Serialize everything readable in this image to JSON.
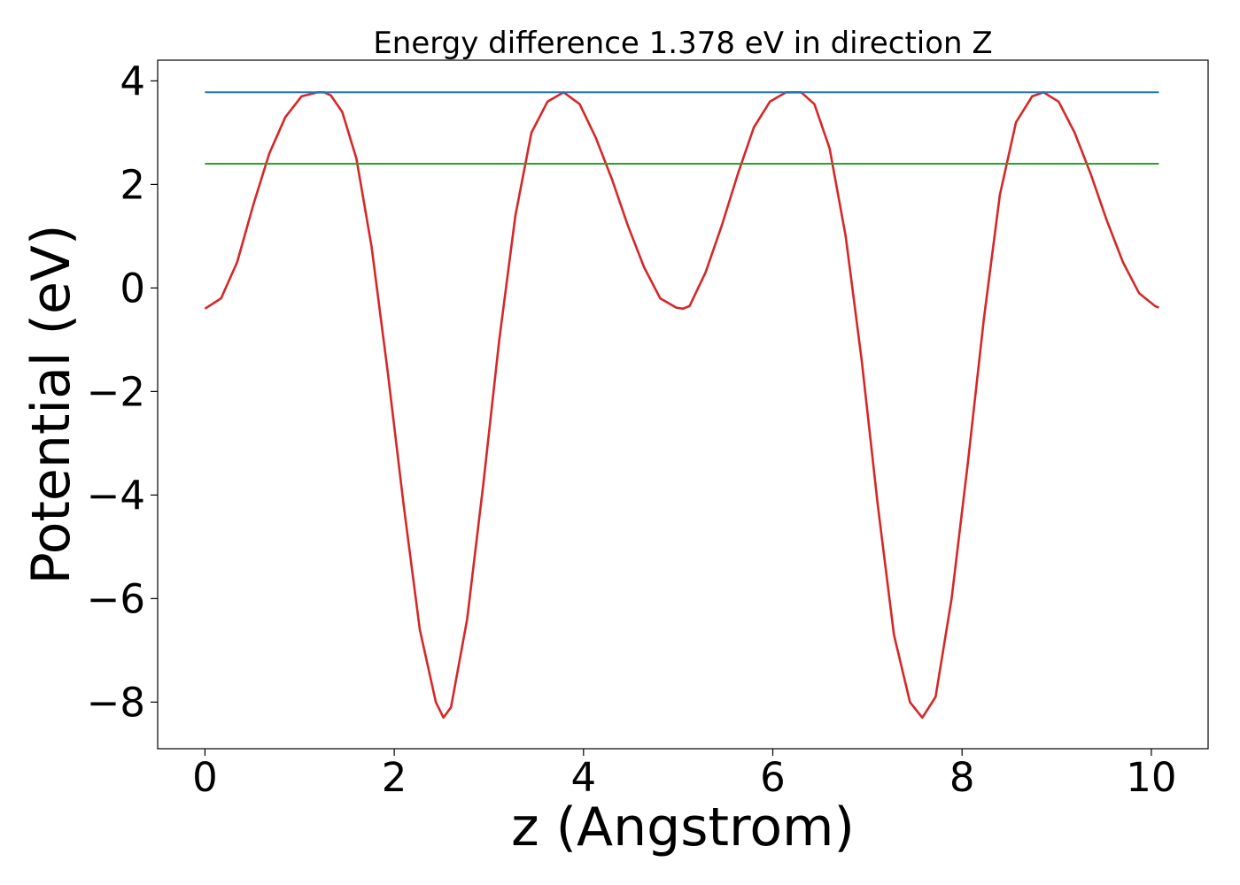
{
  "chart_data": {
    "type": "line",
    "title": "Energy difference 1.378 eV in direction Z",
    "xlabel": "z (Angstrom)",
    "ylabel": "Potential (eV)",
    "xlim": [
      -0.5,
      10.6
    ],
    "ylim": [
      -8.9,
      4.4
    ],
    "x_ticks": [
      0,
      2,
      4,
      6,
      8,
      10
    ],
    "y_ticks": [
      -8,
      -6,
      -4,
      -2,
      0,
      2,
      4
    ],
    "x_tick_labels": [
      "0",
      "2",
      "4",
      "6",
      "8",
      "10"
    ],
    "y_tick_labels": [
      "−8",
      "−6",
      "−4",
      "−2",
      "0",
      "2",
      "4"
    ],
    "grid": false,
    "legend": "none",
    "series": [
      {
        "color": "#d62728",
        "x": [
          0.0,
          0.17,
          0.34,
          0.51,
          0.68,
          0.85,
          1.02,
          1.19,
          1.26,
          1.33,
          1.45,
          1.6,
          1.76,
          1.93,
          2.1,
          2.27,
          2.44,
          2.52,
          2.6,
          2.77,
          2.94,
          3.11,
          3.28,
          3.45,
          3.62,
          3.79,
          3.96,
          4.13,
          4.3,
          4.47,
          4.64,
          4.81,
          4.98,
          5.05,
          5.12,
          5.29,
          5.46,
          5.63,
          5.8,
          5.97,
          6.14,
          6.3,
          6.44,
          6.6,
          6.77,
          6.94,
          7.11,
          7.28,
          7.45,
          7.58,
          7.72,
          7.89,
          8.06,
          8.23,
          8.4,
          8.57,
          8.74,
          8.86,
          9.02,
          9.19,
          9.36,
          9.53,
          9.7,
          9.87,
          10.04,
          10.08
        ],
        "y": [
          -0.4,
          -0.2,
          0.5,
          1.6,
          2.6,
          3.3,
          3.7,
          3.78,
          3.78,
          3.72,
          3.4,
          2.5,
          0.8,
          -1.6,
          -4.2,
          -6.6,
          -8.0,
          -8.3,
          -8.1,
          -6.4,
          -3.8,
          -1.0,
          1.4,
          3.0,
          3.6,
          3.78,
          3.55,
          2.9,
          2.1,
          1.2,
          0.4,
          -0.2,
          -0.38,
          -0.4,
          -0.35,
          0.3,
          1.2,
          2.2,
          3.1,
          3.6,
          3.78,
          3.78,
          3.55,
          2.7,
          1.0,
          -1.4,
          -4.2,
          -6.7,
          -8.0,
          -8.3,
          -7.9,
          -6.0,
          -3.4,
          -0.6,
          1.8,
          3.2,
          3.7,
          3.78,
          3.6,
          3.0,
          2.2,
          1.3,
          0.5,
          -0.1,
          -0.35,
          -0.38
        ]
      },
      {
        "color": "#1f77b4",
        "x": [
          0.0,
          10.08
        ],
        "y": [
          3.78,
          3.78
        ]
      },
      {
        "color": "#2ca02c",
        "x": [
          0.0,
          10.08
        ],
        "y": [
          2.4,
          2.4
        ]
      }
    ]
  }
}
